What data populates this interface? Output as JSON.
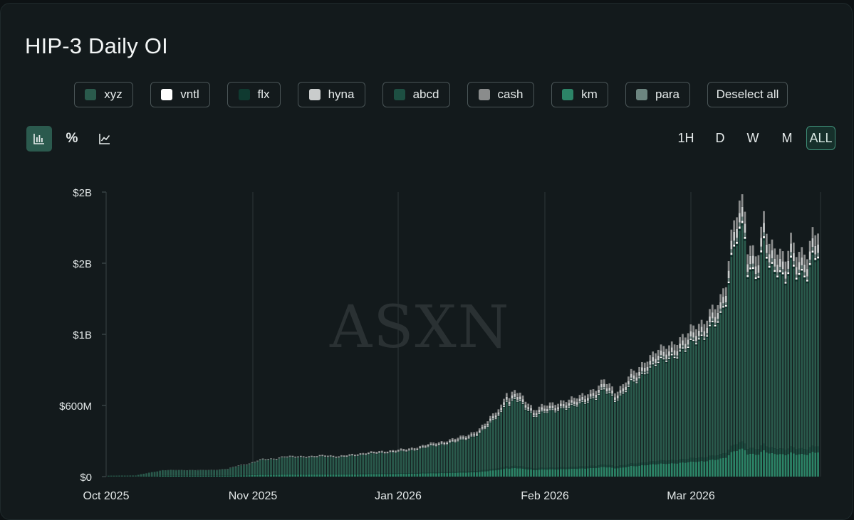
{
  "title": "HIP-3 Daily OI",
  "legend": [
    {
      "label": "xyz",
      "color": "#2a5a4c"
    },
    {
      "label": "vntl",
      "color": "#ffffff"
    },
    {
      "label": "flx",
      "color": "#0f3a30"
    },
    {
      "label": "hyna",
      "color": "#c9cccc"
    },
    {
      "label": "abcd",
      "color": "#1d4f42"
    },
    {
      "label": "cash",
      "color": "#8a8c8c"
    },
    {
      "label": "km",
      "color": "#2c8467"
    },
    {
      "label": "para",
      "color": "#6c8580"
    }
  ],
  "deselect_label": "Deselect all",
  "chart_types": [
    {
      "name": "bar-chart-icon",
      "active": true
    },
    {
      "name": "percent-icon",
      "label": "%",
      "active": false
    },
    {
      "name": "line-chart-icon",
      "active": false
    }
  ],
  "timeframes": [
    {
      "label": "1H",
      "active": false
    },
    {
      "label": "D",
      "active": false
    },
    {
      "label": "W",
      "active": false
    },
    {
      "label": "M",
      "active": false
    },
    {
      "label": "ALL",
      "active": true
    }
  ],
  "watermark": "ASXN",
  "chart_data": {
    "type": "bar",
    "stacked": true,
    "title": "HIP-3 Daily OI",
    "yticks": [
      {
        "value": 0,
        "label": "$0"
      },
      {
        "value": 600000000,
        "label": "$600M"
      },
      {
        "value": 1200000000,
        "label": "$1B"
      },
      {
        "value": 1800000000,
        "label": "$2B"
      },
      {
        "value": 2400000000,
        "label": "$2B"
      }
    ],
    "ylim": [
      0,
      2400000000
    ],
    "xticks": [
      "Oct 2025",
      "Nov 2025",
      "Jan 2026",
      "Feb 2026",
      "Mar 2026"
    ],
    "grid": "vertical",
    "anchors_millions": [
      [
        0,
        8
      ],
      [
        10,
        10
      ],
      [
        12,
        20
      ],
      [
        16,
        38
      ],
      [
        20,
        55
      ],
      [
        27,
        56
      ],
      [
        34,
        55
      ],
      [
        40,
        58
      ],
      [
        44,
        65
      ],
      [
        48,
        95
      ],
      [
        52,
        110
      ],
      [
        55,
        135
      ],
      [
        57,
        150
      ],
      [
        62,
        155
      ],
      [
        65,
        170
      ],
      [
        70,
        175
      ],
      [
        75,
        170
      ],
      [
        80,
        185
      ],
      [
        85,
        170
      ],
      [
        90,
        190
      ],
      [
        95,
        200
      ],
      [
        100,
        215
      ],
      [
        105,
        220
      ],
      [
        110,
        235
      ],
      [
        115,
        255
      ],
      [
        120,
        285
      ],
      [
        125,
        305
      ],
      [
        128,
        320
      ],
      [
        133,
        360
      ],
      [
        137,
        400
      ],
      [
        140,
        470
      ],
      [
        143,
        560
      ],
      [
        145,
        600
      ],
      [
        147,
        720
      ],
      [
        148,
        650
      ],
      [
        150,
        730
      ],
      [
        153,
        680
      ],
      [
        155,
        630
      ],
      [
        157,
        560
      ],
      [
        160,
        590
      ],
      [
        163,
        620
      ],
      [
        166,
        630
      ],
      [
        170,
        640
      ],
      [
        175,
        700
      ],
      [
        180,
        730
      ],
      [
        183,
        820
      ],
      [
        185,
        790
      ],
      [
        187,
        720
      ],
      [
        190,
        760
      ],
      [
        193,
        880
      ],
      [
        195,
        910
      ],
      [
        198,
        980
      ],
      [
        200,
        1000
      ],
      [
        203,
        1070
      ],
      [
        206,
        1120
      ],
      [
        210,
        1130
      ],
      [
        213,
        1180
      ],
      [
        215,
        1260
      ],
      [
        218,
        1310
      ],
      [
        220,
        1290
      ],
      [
        222,
        1380
      ],
      [
        224,
        1420
      ],
      [
        226,
        1520
      ],
      [
        228,
        1660
      ],
      [
        230,
        2040
      ],
      [
        231,
        2150
      ],
      [
        233,
        2280
      ],
      [
        234,
        2300
      ],
      [
        235,
        2250
      ],
      [
        236,
        1920
      ],
      [
        238,
        1950
      ],
      [
        240,
        1900
      ],
      [
        242,
        2210
      ],
      [
        244,
        1930
      ],
      [
        246,
        1940
      ],
      [
        248,
        1920
      ],
      [
        250,
        1870
      ],
      [
        252,
        2000
      ],
      [
        254,
        1870
      ],
      [
        256,
        1880
      ],
      [
        258,
        1900
      ],
      [
        260,
        2090
      ],
      [
        262,
        2080
      ]
    ]
  }
}
